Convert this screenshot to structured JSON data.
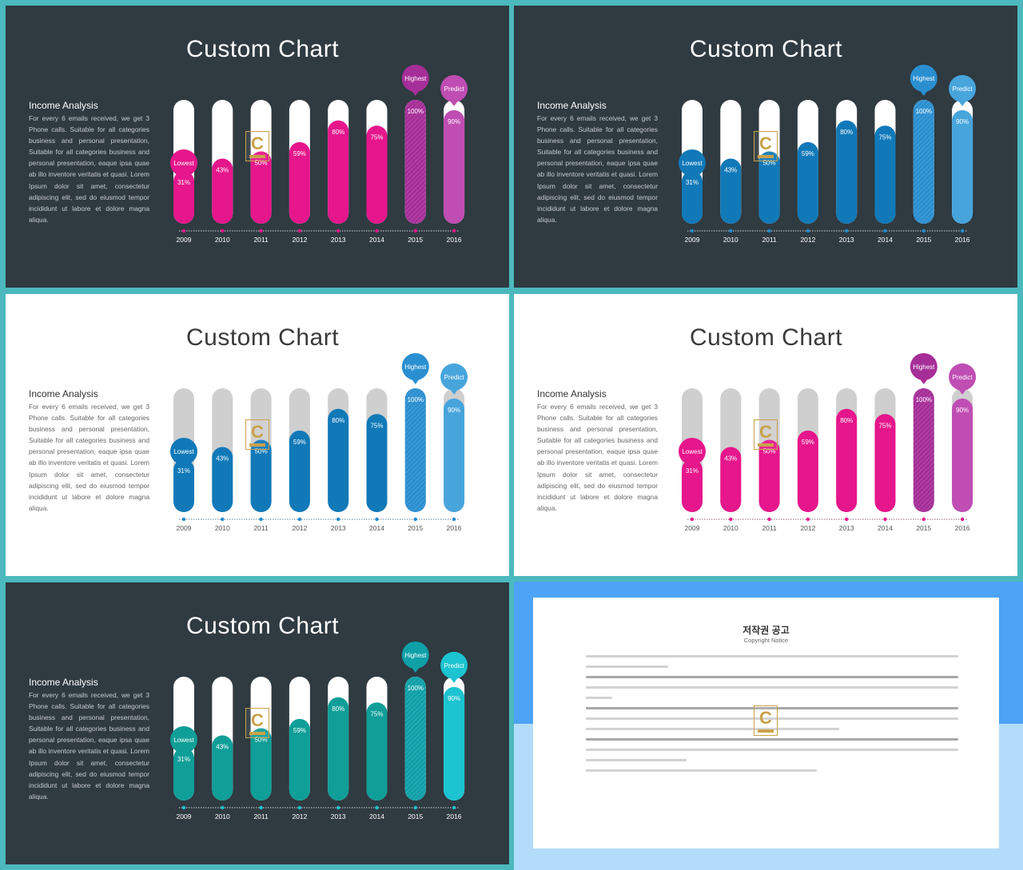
{
  "slides": [
    {
      "id": "slide-1",
      "theme": "dark",
      "title": "Custom Chart",
      "side_heading": "Income Analysis",
      "side_text": "For every 6 emails received, we get 3 Phone calls. Suitable for all categories business and personal presentation, Suitable for all categories business and personal presentation, eaque ipsa quae ab illo inventore veritatis et quasi. Lorem Ipsum dolor sit amet, consectetur adipiscing elit, sed do eiusmod tempor incididunt ut labore et dolore magna aliqua.",
      "colors": {
        "bar": "#e6168c",
        "highlight": "#a62e98",
        "predict": "#bf4db3",
        "track": "#ffffff",
        "bar_label": "#ffffff",
        "axis": "#ffffff",
        "axis_label": "#ffffff",
        "dot": "#e6168c"
      }
    },
    {
      "id": "slide-2",
      "theme": "dark",
      "title": "Custom Chart",
      "side_heading": "Income Analysis",
      "side_text": "For every 6 emails received, we get 3 Phone calls. Suitable for all categories business and personal presentation, Suitable for all categories business and personal presentation, eaque ipsa quae ab illo inventore veritatis et quasi. Lorem Ipsum dolor sit amet, consectetur adipiscing elit, sed do eiusmod tempor incididunt ut labore et dolore magna aliqua.",
      "colors": {
        "bar": "#1179b8",
        "highlight": "#2a8fd0",
        "predict": "#47a5dc",
        "track": "#ffffff",
        "bar_label": "#ffffff",
        "axis": "#ffffff",
        "axis_label": "#ffffff",
        "dot": "#1f8ad0"
      }
    },
    {
      "id": "slide-3",
      "theme": "light",
      "title": "Custom Chart",
      "side_heading": "Income Analysis",
      "side_text": "For every 6 emails received, we get 3 Phone calls. Suitable for all categories business and personal presentation, Suitable for all categories business and personal presentation, eaque ipsa quae ab illo inventore veritatis et quasi. Lorem Ipsum dolor sit amet, consectetur adipiscing elit, sed do eiusmod tempor incididunt ut labore et dolore magna aliqua.",
      "colors": {
        "bar": "#1179b8",
        "highlight": "#2a8fd0",
        "predict": "#47a5dc",
        "track": "#cfcfcf",
        "bar_label": "#ffffff",
        "axis": "#3a5f7a",
        "axis_label": "#555555",
        "dot": "#1f8ad0"
      }
    },
    {
      "id": "slide-4",
      "theme": "light",
      "title": "Custom Chart",
      "side_heading": "Income Analysis",
      "side_text": "For every 6 emails received, we get 3 Phone calls. Suitable for all categories business and personal presentation, Suitable for all categories business and personal presentation, eaque ipsa quae ab illo inventore veritatis et quasi. Lorem Ipsum dolor sit amet, consectetur adipiscing elit, sed do eiusmod tempor incididunt ut labore et dolore magna aliqua.",
      "colors": {
        "bar": "#e6168c",
        "highlight": "#a62e98",
        "predict": "#bf4db3",
        "track": "#cfcfcf",
        "bar_label": "#ffffff",
        "axis": "#7a3a60",
        "axis_label": "#555555",
        "dot": "#e6168c"
      }
    },
    {
      "id": "slide-5",
      "theme": "dark",
      "title": "Custom Chart",
      "side_heading": "Income Analysis",
      "side_text": "For every 6 emails received, we get 3 Phone calls. Suitable for all categories business and personal presentation, Suitable for all categories business and personal presentation, eaque ipsa quae ab illo inventore veritatis et quasi. Lorem Ipsum dolor sit amet, consectetur adipiscing elit, sed do eiusmod tempor incididunt ut labore et dolore magna aliqua.",
      "colors": {
        "bar": "#109e98",
        "highlight": "#0fa0a8",
        "predict": "#1cc3d0",
        "track": "#ffffff",
        "bar_label": "#ffffff",
        "axis": "#ffffff",
        "axis_label": "#ffffff",
        "dot": "#1cc3d0"
      }
    }
  ],
  "chart_data": {
    "type": "bar",
    "categories": [
      "2009",
      "2010",
      "2011",
      "2012",
      "2013",
      "2014",
      "2015",
      "2016"
    ],
    "values": [
      31,
      43,
      50,
      59,
      80,
      75,
      100,
      90
    ],
    "value_labels": [
      "31%",
      "43%",
      "50%",
      "59%",
      "80%",
      "75%",
      "100%",
      "90%"
    ],
    "ylim": [
      0,
      100
    ],
    "callouts": [
      {
        "index": 0,
        "label": "Lowest"
      },
      {
        "index": 6,
        "label": "Highest"
      },
      {
        "index": 7,
        "label": "Predict"
      }
    ],
    "highlight_index": 6,
    "predict_index": 7,
    "grid": false
  },
  "notice": {
    "title": "저작권 공고",
    "subtitle": "Copyright Notice"
  },
  "logo": {
    "letter": "C"
  }
}
